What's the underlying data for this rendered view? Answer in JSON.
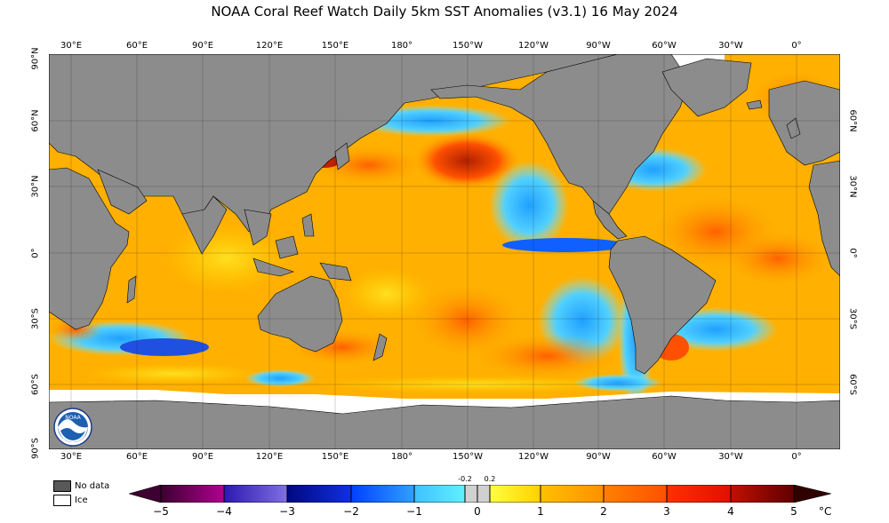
{
  "title": "NOAA Coral Reef Watch Daily 5km SST Anomalies  (v3.1)   16 May 2024",
  "lon_labels": [
    "30°E",
    "60°E",
    "90°E",
    "120°E",
    "150°E",
    "180°",
    "150°W",
    "120°W",
    "90°W",
    "60°W",
    "30°W",
    "0°"
  ],
  "lat_labels_left": [
    "90°N",
    "60°N",
    "30°N",
    "0°",
    "30°S",
    "60°S",
    "90°S"
  ],
  "lat_labels_right": [
    "60°N",
    "30°N",
    "0°",
    "30°S",
    "60°S"
  ],
  "legend": {
    "no_data": "No data",
    "ice": "Ice"
  },
  "colorbar": {
    "ticks": [
      "−5",
      "−4",
      "−3",
      "−2",
      "−1",
      "0",
      "1",
      "2",
      "3",
      "4",
      "5"
    ],
    "small_ticks": [
      "-0.2",
      "0.2"
    ],
    "unit": "°C",
    "colors": {
      "neg5_4": [
        "#3d0030",
        "#80006f"
      ],
      "neg4_3": [
        "#2c18b0",
        "#7060d8"
      ],
      "neg3_2": [
        "#0010a0",
        "#2040e0"
      ],
      "neg2_1": [
        "#0050ff",
        "#30a0ff"
      ],
      "neg1_0": [
        "#40c8ff",
        "#60f0ff"
      ],
      "near0": "#d0d0d0",
      "pos0_1": [
        "#ffff40",
        "#ffd000"
      ],
      "pos1_2": [
        "#ffc000",
        "#ff9a00"
      ],
      "pos2_3": [
        "#ff8000",
        "#ff5000"
      ],
      "pos3_4": [
        "#ff3000",
        "#e01000"
      ],
      "pos4_5": [
        "#c01000",
        "#600000"
      ]
    }
  },
  "colors": {
    "land": "#8c8c8c",
    "no_data": "#585858",
    "ice": "#ffffff"
  },
  "logo_text": "NOAA"
}
